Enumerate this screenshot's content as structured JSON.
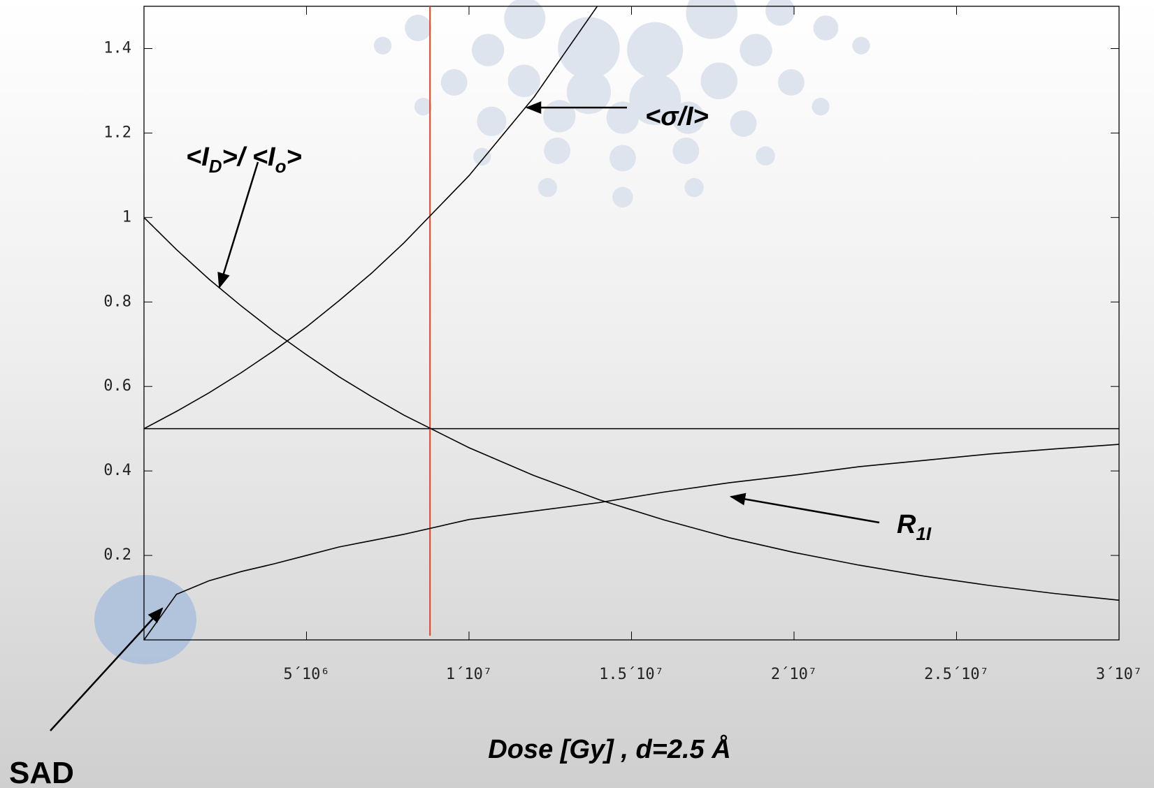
{
  "chart_data": {
    "type": "line",
    "xlabel": "Dose [Gy] , d=2.5 Å",
    "x": [
      0,
      1000000,
      2000000,
      3000000,
      4000000,
      5000000,
      6000000,
      7000000,
      8000000,
      10000000,
      12000000,
      14000000,
      16000000,
      18000000,
      20000000,
      22000000,
      24000000,
      26000000,
      28000000,
      30000000
    ],
    "series": [
      {
        "color": "#000000",
        "values": [
          1,
          0.924,
          0.854,
          0.79,
          0.73,
          0.675,
          0.623,
          0.576,
          0.532,
          0.455,
          0.389,
          0.332,
          0.284,
          0.242,
          0.207,
          0.177,
          0.151,
          0.129,
          0.11,
          0.094
        ]
      },
      {
        "color": "#000000",
        "values": [
          0.5,
          0.541,
          0.585,
          0.633,
          0.685,
          0.741,
          0.803,
          0.868,
          0.94,
          1.099,
          1.285,
          1.506,
          null,
          null,
          null,
          null,
          null,
          null,
          null,
          null
        ]
      },
      {
        "color": "#000000",
        "values": [
          0,
          0.108,
          0.14,
          0.162,
          0.18,
          0.2,
          0.22,
          0.235,
          0.25,
          0.285,
          0.305,
          0.325,
          0.35,
          0.372,
          0.39,
          0.41,
          0.425,
          0.44,
          0.452,
          0.463
        ]
      }
    ],
    "hline": 0.5,
    "hline_color": "#000000",
    "vline": 8800000,
    "vline_color": "#e8401c",
    "xlim": [
      0,
      30000000
    ],
    "ylim": [
      0,
      1.5
    ],
    "xticks": [
      {
        "value": 5000000,
        "label": "5´10⁶"
      },
      {
        "value": 10000000,
        "label": "1´10⁷"
      },
      {
        "value": 15000000,
        "label": "1.5´10⁷"
      },
      {
        "value": 20000000,
        "label": "2´10⁷"
      },
      {
        "value": 25000000,
        "label": "2.5´10⁷"
      },
      {
        "value": 30000000,
        "label": "3´10⁷"
      }
    ],
    "yticks": [
      0.2,
      0.4,
      0.6,
      0.8,
      1,
      1.2,
      1.4
    ],
    "annotations": [
      {
        "text": [
          "<I",
          "D",
          ">/ <I",
          "o",
          ">"
        ]
      },
      {
        "text": [
          "<σ/I>"
        ]
      },
      {
        "text": [
          "R",
          "1I"
        ]
      },
      {
        "text": [
          "SAD"
        ]
      }
    ]
  }
}
